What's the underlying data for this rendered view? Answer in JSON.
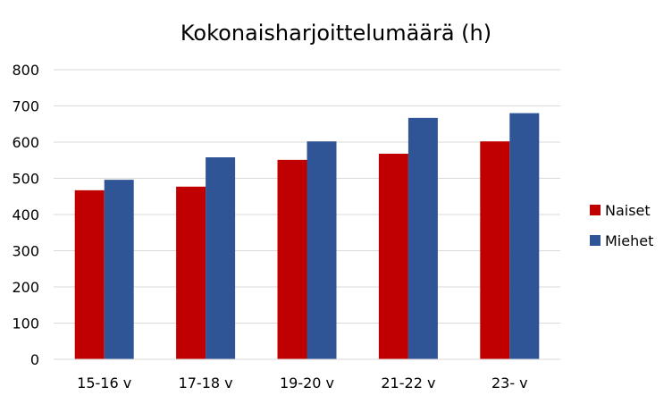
{
  "chart_data": {
    "type": "bar",
    "title": "Kokonaisharjoittelumäärä (h)",
    "categories": [
      "15-16 v",
      "17-18 v",
      "19-20 v",
      "21-22 v",
      "23- v"
    ],
    "series": [
      {
        "name": "Naiset",
        "color": "#c00000",
        "values": [
          467,
          477,
          551,
          568,
          602
        ]
      },
      {
        "name": "Miehet",
        "color": "#2f5597",
        "values": [
          496,
          558,
          602,
          667,
          680
        ]
      }
    ],
    "ylim": [
      0,
      800
    ],
    "yticks": [
      "0",
      "100",
      "200",
      "300",
      "400",
      "500",
      "600",
      "700",
      "800"
    ],
    "grid": true,
    "legend_position": "right"
  }
}
